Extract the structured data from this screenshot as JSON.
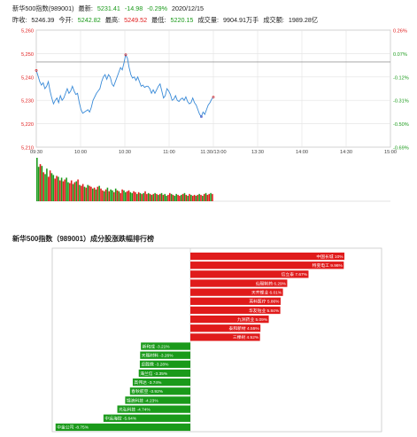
{
  "header": {
    "name": "新华500指数(989001)",
    "latest_label": "最新:",
    "latest_value": "5231.41",
    "change": "-14.98",
    "change_pct": "-0.29%",
    "date": "2020/12/15",
    "prev_close_label": "昨收:",
    "prev_close_value": "5246.39",
    "open_label": "今开:",
    "open_value": "5242.82",
    "high_label": "最高:",
    "high_value": "5249.52",
    "low_label": "最低:",
    "low_value": "5220.15",
    "volume_label": "成交量:",
    "volume_value": "9904.91万手",
    "amount_label": "成交额:",
    "amount_value": "1989.28亿"
  },
  "colors": {
    "up": "#e01b1b",
    "down": "#1a9a1a",
    "line": "#3a8bd8",
    "grid": "#c8c8c8"
  },
  "chart_data": [
    {
      "type": "line",
      "title": "",
      "xlabel": "",
      "ylabel": "",
      "ylim": [
        5210,
        5260
      ],
      "y_ticks": [
        "5,260",
        "5,250",
        "5,240",
        "5,230",
        "5,220",
        "5,210"
      ],
      "y_right_ticks": [
        "0.26%",
        "0.07%",
        "-0.12%",
        "-0.31%",
        "-0.50%",
        "-0.69%"
      ],
      "x_ticks": [
        "09:30",
        "10:00",
        "10:30",
        "11:00",
        "11:30/13:00",
        "13:30",
        "14:00",
        "14:30",
        "15:00"
      ],
      "reference_value": 5246.39,
      "series": [
        {
          "values": [
            5242.8,
            5240.5,
            5238,
            5236.5,
            5237.5,
            5235,
            5236,
            5238,
            5234,
            5231,
            5228.5,
            5230,
            5231,
            5229,
            5232,
            5230,
            5231,
            5233,
            5235,
            5233,
            5234,
            5236,
            5234,
            5232.5,
            5233,
            5229,
            5226,
            5224.5,
            5225,
            5225.5,
            5226,
            5225,
            5227,
            5230,
            5231.5,
            5233,
            5234,
            5235,
            5238,
            5240,
            5241,
            5239,
            5241,
            5240,
            5237,
            5236,
            5238,
            5240,
            5242,
            5244,
            5243,
            5246,
            5249.5,
            5248,
            5244,
            5241,
            5239.5,
            5240,
            5238.5,
            5240,
            5238,
            5236,
            5236.5,
            5235.5,
            5236,
            5236,
            5235,
            5233,
            5234.5,
            5233,
            5234.5,
            5236,
            5237,
            5234,
            5231,
            5232,
            5235,
            5234,
            5232.5,
            5230,
            5230.5,
            5232,
            5230,
            5229.5,
            5230.5,
            5231,
            5230,
            5231.5,
            5229.5,
            5228.5,
            5229,
            5231,
            5229,
            5228,
            5226,
            5224,
            5223,
            5225,
            5224,
            5226,
            5228,
            5229,
            5230.5,
            5231.4
          ]
        }
      ]
    },
    {
      "type": "bar",
      "title": "",
      "xlabel": "",
      "ylabel": "",
      "values": [
        48,
        38,
        41,
        39,
        32,
        30,
        36,
        27,
        34,
        31,
        29,
        25,
        28,
        27,
        23,
        26,
        22,
        24,
        26,
        21,
        20,
        23,
        19,
        21,
        22,
        24,
        18,
        17,
        19,
        16,
        15,
        18,
        17,
        16,
        14,
        15,
        13,
        16,
        17,
        14,
        12,
        11,
        13,
        15,
        11,
        13,
        12,
        10,
        14,
        12,
        11,
        9,
        13,
        12,
        10,
        11,
        12,
        10,
        9,
        11,
        10,
        8,
        10,
        9,
        8,
        9,
        11,
        8,
        9,
        8,
        7,
        8,
        9,
        8,
        7,
        8,
        9,
        7,
        8,
        6,
        7,
        9,
        8,
        7,
        6,
        8,
        7,
        6,
        7,
        8,
        9,
        7,
        6,
        8,
        7,
        6,
        7,
        6,
        7,
        8,
        7,
        6,
        8,
        9,
        7,
        8,
        9,
        8
      ],
      "directions": [
        "d",
        "d",
        "u",
        "d",
        "u",
        "d",
        "d",
        "u",
        "u",
        "d",
        "d",
        "u",
        "u",
        "d",
        "u",
        "d",
        "u",
        "u",
        "d",
        "d",
        "u",
        "u",
        "d",
        "u",
        "d",
        "u",
        "d",
        "u",
        "u",
        "d",
        "u",
        "d",
        "u",
        "u",
        "d",
        "u",
        "d",
        "u",
        "d",
        "u",
        "u",
        "d",
        "u",
        "d",
        "u",
        "d",
        "d",
        "u",
        "d",
        "u",
        "d",
        "u",
        "u",
        "d",
        "d",
        "u",
        "u",
        "d",
        "d",
        "u",
        "u",
        "d",
        "u",
        "d",
        "u",
        "d",
        "u",
        "u",
        "d",
        "u",
        "d",
        "u",
        "d",
        "u",
        "d",
        "u",
        "d",
        "u",
        "d",
        "d",
        "u",
        "u",
        "d",
        "u",
        "d",
        "d",
        "u",
        "u",
        "d",
        "u",
        "d",
        "u",
        "d",
        "u",
        "d",
        "u",
        "u",
        "d",
        "u",
        "d",
        "u",
        "d",
        "u",
        "d",
        "u",
        "u",
        "d",
        "u"
      ]
    },
    {
      "type": "bar",
      "title": "新华500指数（989001）成分股涨跌幅排行榜",
      "xlabel": "",
      "ylabel": "",
      "categories": [
        "中国长城",
        "特变电工",
        "信立泰",
        "仙琚制药",
        "天齐锂业",
        "英科医疗",
        "华友钴业",
        "九洲药业",
        "泰和新材",
        "三棵树",
        "新和成",
        "天赐材料",
        "卓胜微",
        "海兰信",
        "高伟达",
        "春秋航空",
        "锦浪科技",
        "光弘科技",
        "中远海控",
        "中金公司"
      ],
      "values": [
        10.0,
        9.96,
        7.67,
        6.29,
        6.01,
        5.86,
        5.84,
        5.09,
        4.55,
        4.52,
        -3.21,
        -3.26,
        -3.28,
        -3.35,
        -3.74,
        -3.92,
        -4.23,
        -4.74,
        -5.64,
        -8.75
      ],
      "labels": [
        "中国长城 10%",
        "特变电工 9.96%",
        "信立泰 7.67%",
        "仙琚制药 6.29%",
        "天齐锂业 6.01%",
        "英科医疗 5.86%",
        "华友钴业 5.84%",
        "九洲药业 5.09%",
        "泰和新材 4.55%",
        "三棵树 4.52%",
        "新和成 -3.21%",
        "天赐材料 -3.26%",
        "卓胜微 -3.28%",
        "海兰信 -3.35%",
        "高伟达 -3.74%",
        "春秋航空 -3.92%",
        "锦浪科技 -4.23%",
        "光弘科技 -4.74%",
        "中远海控 -5.64%",
        "中金公司 -8.75%"
      ]
    }
  ]
}
